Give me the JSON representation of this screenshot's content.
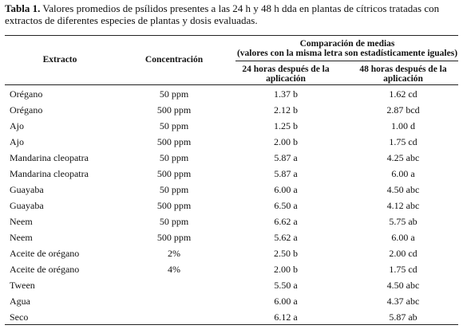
{
  "caption": {
    "label": "Tabla 1.",
    "text": "Valores promedios de psílidos presentes a las 24 h y 48 h dda en plantas de cítricos tratadas con extractos de diferentes especies de plantas y dosis evaluadas."
  },
  "table": {
    "headers": [
      "Extracto",
      "Concentración",
      [
        "24 horas después de la",
        "aplicación"
      ],
      [
        "48 horas después de la",
        "aplicación"
      ]
    ],
    "group_header": [
      "Comparación de medias",
      "(valores con la misma letra son estadísticamente iguales)"
    ],
    "rows": [
      [
        "Orégano",
        "50 ppm",
        "1.37 b",
        "1.62 cd"
      ],
      [
        "Orégano",
        "500 ppm",
        "2.12 b",
        "2.87 bcd"
      ],
      [
        "Ajo",
        "50 ppm",
        "1.25 b",
        "1.00 d"
      ],
      [
        "Ajo",
        "500 ppm",
        "2.00 b",
        "1.75 cd"
      ],
      [
        "Mandarina cleopatra",
        "50 ppm",
        "5.87 a",
        "4.25 abc"
      ],
      [
        "Mandarina cleopatra",
        "500 ppm",
        "5.87 a",
        "6.00 a"
      ],
      [
        "Guayaba",
        "50 ppm",
        "6.00 a",
        "4.50 abc"
      ],
      [
        "Guayaba",
        "500 ppm",
        "6.50 a",
        "4.12 abc"
      ],
      [
        "Neem",
        "50 ppm",
        "6.62 a",
        "5.75 ab"
      ],
      [
        "Neem",
        "500 ppm",
        "5.62 a",
        "6.00 a"
      ],
      [
        "Aceite de orégano",
        "2%",
        "2.50 b",
        "2.00 cd"
      ],
      [
        "Aceite de orégano",
        "4%",
        "2.00 b",
        "1.75 cd"
      ],
      [
        "Tween",
        null,
        "5.50 a",
        "4.50 abc"
      ],
      [
        "Agua",
        null,
        "6.00 a",
        "4.37 abc"
      ],
      [
        "Seco",
        null,
        "6.12 a",
        "5.87 ab"
      ]
    ]
  }
}
